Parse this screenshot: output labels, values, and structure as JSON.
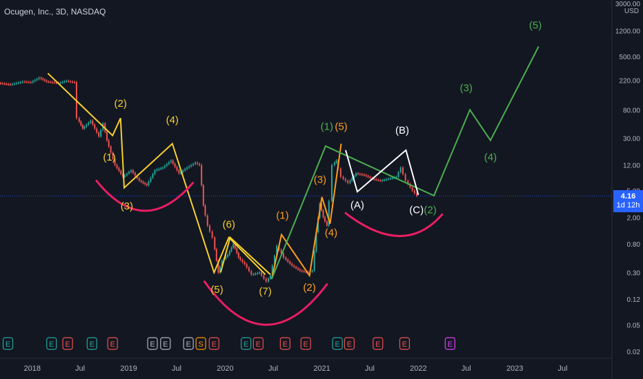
{
  "header": {
    "title": "Ocugen, Inc., 3D, NASDAQ",
    "currency": "USD",
    "top_tick": "3000.00"
  },
  "price_badge": {
    "price": "4.16",
    "countdown": "1d 12h"
  },
  "colors": {
    "background": "#131722",
    "impulse_yellow": "#f7d02c",
    "wave_orange": "#ff9f1c",
    "projection_green": "#4caf50",
    "correction_white": "#ffffff",
    "arc_pink": "#e91e63",
    "candle_up": "#26a69a",
    "candle_down": "#ef5350",
    "earnings_green": "#26a69a",
    "earnings_red": "#ef5350",
    "earnings_grey": "#b2b5be",
    "earnings_orange": "#ff9800",
    "earnings_magenta": "#e040fb"
  },
  "chart_data": {
    "type": "line",
    "yscale": "log",
    "ylim": [
      0.02,
      3000
    ],
    "xlim": [
      "2017-09-01",
      "2024-01-01"
    ],
    "y_ticks": [
      "3000.00",
      "1200.00",
      "500.00",
      "220.00",
      "80.00",
      "30.00",
      "12.00",
      "5.00",
      "2.00",
      "0.80",
      "0.30",
      "0.12",
      "0.05",
      "0.02"
    ],
    "y_tick_values": [
      3000,
      1200,
      500,
      220,
      80,
      30,
      12,
      5,
      2,
      0.8,
      0.3,
      0.12,
      0.05,
      0.02
    ],
    "x_ticks": [
      "2018",
      "Jul",
      "2019",
      "Jul",
      "2020",
      "Jul",
      "2021",
      "Jul",
      "2022",
      "Jul",
      "2023",
      "Jul"
    ],
    "x_tick_dates": [
      "2018-01-01",
      "2018-07-01",
      "2019-01-01",
      "2019-07-01",
      "2020-01-01",
      "2020-07-01",
      "2021-01-01",
      "2021-07-01",
      "2022-01-01",
      "2022-07-01",
      "2023-01-01",
      "2023-07-01"
    ],
    "current_price": 4.16,
    "price_series": [
      [
        "2017-09-01",
        200
      ],
      [
        "2017-10-15",
        190
      ],
      [
        "2017-12-01",
        210
      ],
      [
        "2018-01-01",
        205
      ],
      [
        "2018-02-01",
        240
      ],
      [
        "2018-03-01",
        210
      ],
      [
        "2018-04-15",
        200
      ],
      [
        "2018-05-15",
        215
      ],
      [
        "2018-06-15",
        205
      ],
      [
        "2018-06-25",
        60
      ],
      [
        "2018-07-15",
        42
      ],
      [
        "2018-08-15",
        55
      ],
      [
        "2018-09-15",
        32
      ],
      [
        "2018-10-01",
        50
      ],
      [
        "2018-10-15",
        28
      ],
      [
        "2018-11-15",
        12
      ],
      [
        "2018-12-15",
        8
      ],
      [
        "2019-01-15",
        10
      ],
      [
        "2019-02-15",
        7
      ],
      [
        "2019-03-15",
        6
      ],
      [
        "2019-04-15",
        10
      ],
      [
        "2019-05-15",
        11
      ],
      [
        "2019-06-15",
        14
      ],
      [
        "2019-07-15",
        9
      ],
      [
        "2019-08-15",
        11
      ],
      [
        "2019-09-15",
        13
      ],
      [
        "2019-10-01",
        12
      ],
      [
        "2019-10-15",
        3
      ],
      [
        "2019-11-01",
        1.5
      ],
      [
        "2019-11-20",
        1.0
      ],
      [
        "2019-12-10",
        0.3
      ],
      [
        "2019-12-25",
        0.45
      ],
      [
        "2020-01-15",
        0.55
      ],
      [
        "2020-02-05",
        0.8
      ],
      [
        "2020-02-25",
        0.5
      ],
      [
        "2020-03-20",
        0.4
      ],
      [
        "2020-04-15",
        0.28
      ],
      [
        "2020-05-15",
        0.3
      ],
      [
        "2020-06-10",
        0.22
      ],
      [
        "2020-06-25",
        0.27
      ],
      [
        "2020-07-20",
        0.75
      ],
      [
        "2020-08-15",
        0.5
      ],
      [
        "2020-09-15",
        0.38
      ],
      [
        "2020-10-15",
        0.32
      ],
      [
        "2020-11-15",
        0.3
      ],
      [
        "2020-12-01",
        0.32
      ],
      [
        "2020-12-15",
        1.2
      ],
      [
        "2020-12-28",
        3.2
      ],
      [
        "2021-01-10",
        2.0
      ],
      [
        "2021-01-25",
        1.5
      ],
      [
        "2021-02-05",
        3.5
      ],
      [
        "2021-02-15",
        12
      ],
      [
        "2021-03-01",
        14
      ],
      [
        "2021-03-20",
        8
      ],
      [
        "2021-04-15",
        6.5
      ],
      [
        "2021-05-15",
        9
      ],
      [
        "2021-06-15",
        8.5
      ],
      [
        "2021-07-15",
        7.5
      ],
      [
        "2021-08-15",
        7
      ],
      [
        "2021-09-15",
        7.5
      ],
      [
        "2021-10-15",
        8
      ],
      [
        "2021-11-01",
        11
      ],
      [
        "2021-11-20",
        7
      ],
      [
        "2021-12-15",
        5
      ],
      [
        "2022-01-01",
        4.16
      ]
    ],
    "annotations": {
      "yellow_impulse_1": {
        "color": "yellow",
        "points": [
          [
            "2018-03-01",
            280
          ],
          [
            "2018-11-01",
            33
          ],
          [
            "2018-12-01",
            60
          ],
          [
            "2018-12-15",
            5.5
          ],
          [
            "2019-06-15",
            25
          ],
          [
            "2019-11-20",
            0.3
          ],
          [
            "2020-01-15",
            1.0
          ],
          [
            "2020-06-01",
            0.28
          ]
        ]
      },
      "yellow_impulse_2": {
        "color": "yellow",
        "points": [
          [
            "2019-12-15",
            0.3
          ],
          [
            "2020-01-20",
            1.0
          ],
          [
            "2020-06-20",
            0.28
          ]
        ]
      },
      "orange_impulse": {
        "color": "orange",
        "points": [
          [
            "2020-06-25",
            0.24
          ],
          [
            "2020-08-01",
            1.1
          ],
          [
            "2020-11-15",
            0.27
          ],
          [
            "2021-01-01",
            4.0
          ],
          [
            "2021-02-01",
            1.6
          ],
          [
            "2021-03-15",
            25
          ]
        ]
      },
      "green_projection": {
        "color": "green",
        "points": [
          [
            "2020-06-25",
            0.24
          ],
          [
            "2021-01-15",
            23
          ],
          [
            "2022-03-01",
            4.2
          ],
          [
            "2022-07-15",
            80
          ],
          [
            "2022-10-01",
            28
          ],
          [
            "2023-04-01",
            700
          ]
        ]
      },
      "white_correction": {
        "color": "white",
        "points": [
          [
            "2021-04-01",
            20
          ],
          [
            "2021-05-15",
            4.8
          ],
          [
            "2021-11-15",
            20
          ],
          [
            "2022-01-01",
            4.3
          ]
        ]
      },
      "arcs": [
        {
          "color": "pink",
          "from": [
            "2018-09-01",
            7.0
          ],
          "low": [
            "2019-03-01",
            2.5
          ],
          "to": [
            "2019-09-01",
            6.5
          ]
        },
        {
          "color": "pink",
          "from": [
            "2019-10-15",
            0.22
          ],
          "low": [
            "2020-06-01",
            0.05
          ],
          "to": [
            "2021-01-20",
            0.2
          ]
        },
        {
          "color": "pink",
          "from": [
            "2021-04-01",
            2.3
          ],
          "low": [
            "2021-10-20",
            1.05
          ],
          "to": [
            "2022-04-01",
            2.2
          ]
        }
      ],
      "labels": [
        {
          "text": "(2)",
          "color": "yellow",
          "date": "2018-12-01",
          "y": 88
        },
        {
          "text": "(1)",
          "color": "yellow",
          "date": "2018-10-20",
          "y": 14
        },
        {
          "text": "(3)",
          "color": "yellow",
          "date": "2018-12-25",
          "y": 2.6
        },
        {
          "text": "(4)",
          "color": "yellow",
          "date": "2019-06-15",
          "y": 50
        },
        {
          "text": "(6)",
          "color": "yellow",
          "date": "2020-01-15",
          "y": 1.4
        },
        {
          "text": "(5)",
          "color": "yellow",
          "date": "2019-12-01",
          "y": 0.15
        },
        {
          "text": "(7)",
          "color": "yellow",
          "date": "2020-06-01",
          "y": 0.14
        },
        {
          "text": "(1)",
          "color": "orange",
          "date": "2020-08-05",
          "y": 1.9
        },
        {
          "text": "(2)",
          "color": "orange",
          "date": "2020-11-15",
          "y": 0.16
        },
        {
          "text": "(3)",
          "color": "orange",
          "date": "2020-12-25",
          "y": 6.5
        },
        {
          "text": "(4)",
          "color": "orange",
          "date": "2021-02-05",
          "y": 1.05
        },
        {
          "text": "(5)",
          "color": "orange",
          "date": "2021-03-15",
          "y": 40
        },
        {
          "text": "(1)",
          "color": "green",
          "date": "2021-01-20",
          "y": 40
        },
        {
          "text": "(2)",
          "color": "green",
          "date": "2022-02-15",
          "y": 2.3
        },
        {
          "text": "(3)",
          "color": "green",
          "date": "2022-07-01",
          "y": 150
        },
        {
          "text": "(4)",
          "color": "green",
          "date": "2022-10-01",
          "y": 14
        },
        {
          "text": "(5)",
          "color": "green",
          "date": "2023-03-20",
          "y": 1300
        },
        {
          "text": "(A)",
          "color": "white",
          "date": "2021-05-15",
          "y": 2.7
        },
        {
          "text": "(B)",
          "color": "white",
          "date": "2021-11-01",
          "y": 35
        },
        {
          "text": "(C)",
          "color": "white",
          "date": "2021-12-25",
          "y": 2.3
        }
      ]
    },
    "events": [
      {
        "letter": "E",
        "kind": "green",
        "date": "2017-10-01"
      },
      {
        "letter": "E",
        "kind": "green",
        "date": "2018-03-15"
      },
      {
        "letter": "E",
        "kind": "red",
        "date": "2018-05-15"
      },
      {
        "letter": "E",
        "kind": "green",
        "date": "2018-08-15"
      },
      {
        "letter": "E",
        "kind": "red",
        "date": "2018-11-01"
      },
      {
        "letter": "E",
        "kind": "grey",
        "date": "2019-04-01"
      },
      {
        "letter": "E",
        "kind": "grey",
        "date": "2019-05-20"
      },
      {
        "letter": "E",
        "kind": "grey",
        "date": "2019-08-15"
      },
      {
        "letter": "S",
        "kind": "orange",
        "date": "2019-10-01"
      },
      {
        "letter": "E",
        "kind": "red",
        "date": "2019-11-20"
      },
      {
        "letter": "E",
        "kind": "green",
        "date": "2020-03-20"
      },
      {
        "letter": "E",
        "kind": "red",
        "date": "2020-05-05"
      },
      {
        "letter": "E",
        "kind": "red",
        "date": "2020-08-15"
      },
      {
        "letter": "E",
        "kind": "red",
        "date": "2020-11-01"
      },
      {
        "letter": "E",
        "kind": "green",
        "date": "2021-03-01"
      },
      {
        "letter": "E",
        "kind": "red",
        "date": "2021-04-15"
      },
      {
        "letter": "E",
        "kind": "red",
        "date": "2021-08-01"
      },
      {
        "letter": "E",
        "kind": "red",
        "date": "2021-11-10"
      },
      {
        "letter": "E",
        "kind": "magenta",
        "date": "2022-05-01"
      }
    ]
  }
}
